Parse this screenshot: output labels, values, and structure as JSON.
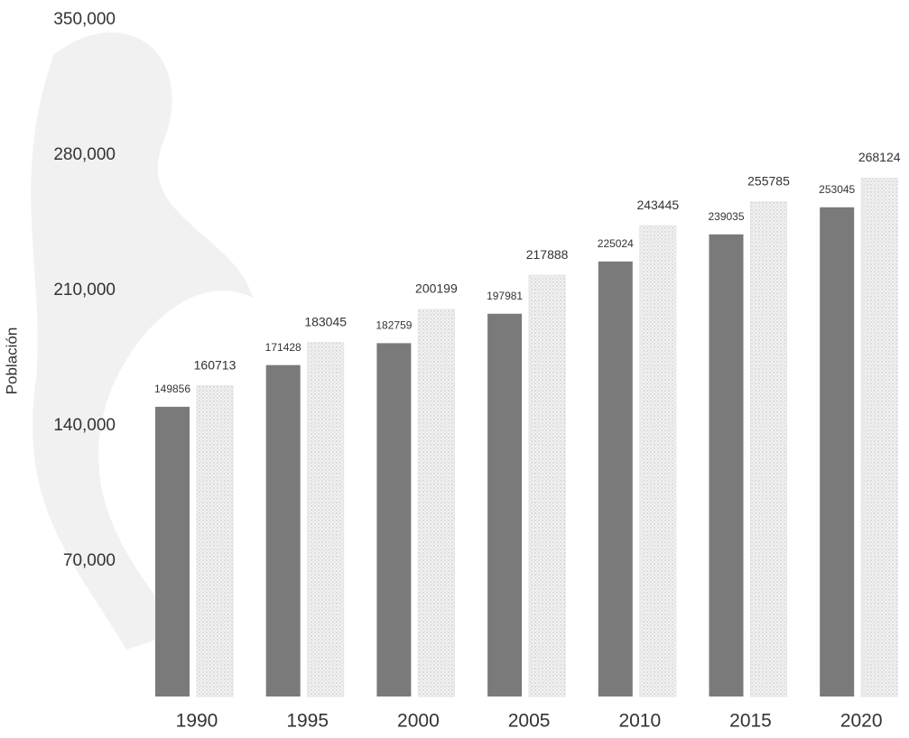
{
  "chart_data": {
    "type": "bar",
    "y_label": "Población",
    "categories": [
      "1990",
      "1995",
      "2000",
      "2005",
      "2010",
      "2015",
      "2020"
    ],
    "series": [
      {
        "color": "#7a7a7a",
        "values": [
          149856,
          171428,
          182759,
          197981,
          225024,
          239035,
          253045
        ]
      },
      {
        "color": "#e4e4e4",
        "values": [
          160713,
          183045,
          200199,
          217888,
          243445,
          255785,
          268124
        ]
      }
    ],
    "ylim": [
      0,
      350000
    ],
    "yticks": [
      {
        "value": 70000,
        "label": "70,000"
      },
      {
        "value": 140000,
        "label": "140,000"
      },
      {
        "value": 210000,
        "label": "210,000"
      },
      {
        "value": 280000,
        "label": "280,000"
      },
      {
        "value": 350000,
        "label": "350,000"
      }
    ],
    "grid": false
  }
}
